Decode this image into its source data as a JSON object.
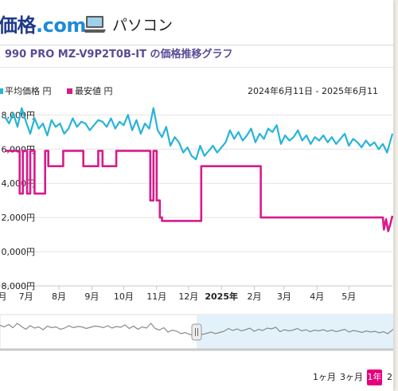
{
  "header": {
    "logo_brand": "価格",
    "logo_com": ".com",
    "category_icon": "laptop-icon",
    "category": "パソコン"
  },
  "chart_title": "990 PRO MZ-V9P2T0B-IT の価格推移グラフ",
  "legend": {
    "avg": {
      "label": "平均価格 円",
      "color": "#27b4d8"
    },
    "min": {
      "label": "最安値 円",
      "color": "#d81b8c"
    }
  },
  "period": "2024年6月11日 - 2025年6月11",
  "range_buttons": {
    "m1": "1ヶ月",
    "m3": "3ヶ月",
    "y1": "1年",
    "y2": "2"
  },
  "colors": {
    "avg_line": "#27b4d8",
    "min_line": "#d81b8c",
    "active_button": "#e6007e",
    "navigator_bg": "#e3f2fa"
  },
  "chart_data": {
    "type": "line",
    "y_tick_labels": [
      "8,000円",
      "6,000円",
      "4,000円",
      "2,000円",
      "0,000円",
      "8,000円"
    ],
    "y_tick_values": [
      8000,
      6000,
      4000,
      2000,
      0,
      -2000
    ],
    "ylim": [
      -2000,
      8900
    ],
    "x_range": [
      "2024-06-11",
      "2025-06-11"
    ],
    "x_tick_labels": [
      "7月",
      "8月",
      "9月",
      "10月",
      "11月",
      "12月",
      "2025年",
      "2月",
      "3月",
      "4月",
      "5月"
    ],
    "x_tick_dates": [
      "2024-07-01",
      "2024-08-01",
      "2024-09-01",
      "2024-10-01",
      "2024-11-01",
      "2024-12-01",
      "2025-01-01",
      "2025-02-01",
      "2025-03-01",
      "2025-04-01",
      "2025-05-01"
    ],
    "x_tick_bold": "2025年",
    "left_clipped_label": "月",
    "grid": "horizontal",
    "series": [
      {
        "name": "平均価格 円",
        "x": [
          "2024-06-11",
          "2024-06-15",
          "2024-06-19",
          "2024-06-23",
          "2024-06-27",
          "2024-07-01",
          "2024-07-05",
          "2024-07-09",
          "2024-07-13",
          "2024-07-17",
          "2024-07-21",
          "2024-07-25",
          "2024-07-29",
          "2024-08-02",
          "2024-08-06",
          "2024-08-10",
          "2024-08-14",
          "2024-08-18",
          "2024-08-22",
          "2024-08-26",
          "2024-08-30",
          "2024-09-03",
          "2024-09-07",
          "2024-09-11",
          "2024-09-15",
          "2024-09-19",
          "2024-09-23",
          "2024-09-27",
          "2024-10-01",
          "2024-10-05",
          "2024-10-09",
          "2024-10-13",
          "2024-10-17",
          "2024-10-21",
          "2024-10-25",
          "2024-10-29",
          "2024-11-02",
          "2024-11-06",
          "2024-11-10",
          "2024-11-14",
          "2024-11-18",
          "2024-11-22",
          "2024-11-26",
          "2024-11-30",
          "2024-12-04",
          "2024-12-08",
          "2024-12-12",
          "2024-12-16",
          "2024-12-20",
          "2024-12-24",
          "2024-12-28",
          "2025-01-01",
          "2025-01-05",
          "2025-01-09",
          "2025-01-13",
          "2025-01-17",
          "2025-01-21",
          "2025-01-25",
          "2025-01-29",
          "2025-02-02",
          "2025-02-06",
          "2025-02-10",
          "2025-02-14",
          "2025-02-18",
          "2025-02-22",
          "2025-02-26",
          "2025-03-02",
          "2025-03-06",
          "2025-03-10",
          "2025-03-14",
          "2025-03-18",
          "2025-03-22",
          "2025-03-26",
          "2025-03-30",
          "2025-04-03",
          "2025-04-07",
          "2025-04-11",
          "2025-04-15",
          "2025-04-19",
          "2025-04-23",
          "2025-04-27",
          "2025-05-01",
          "2025-05-05",
          "2025-05-09",
          "2025-05-13",
          "2025-05-17",
          "2025-05-21",
          "2025-05-25",
          "2025-05-29",
          "2025-06-02",
          "2025-06-06",
          "2025-06-11"
        ],
        "values": [
          7900,
          7500,
          8100,
          7300,
          8400,
          7600,
          6900,
          7800,
          7200,
          7500,
          6800,
          7700,
          7300,
          7500,
          6900,
          7200,
          7800,
          7300,
          7600,
          7500,
          7100,
          7400,
          7700,
          7600,
          7300,
          7800,
          7200,
          7600,
          7400,
          8000,
          7100,
          7700,
          6900,
          7500,
          7200,
          8400,
          7100,
          6700,
          7300,
          6200,
          6700,
          6400,
          5800,
          6100,
          5600,
          5400,
          6200,
          5600,
          5900,
          6200,
          5800,
          6100,
          6400,
          7100,
          6600,
          7000,
          6500,
          6800,
          7200,
          6400,
          6900,
          6600,
          7200,
          7000,
          7400,
          6300,
          6800,
          6500,
          6700,
          7100,
          6500,
          6800,
          6300,
          6700,
          6500,
          6800,
          6400,
          6700,
          6300,
          6600,
          6900,
          6200,
          6600,
          6400,
          6100,
          6500,
          6200,
          6400,
          6000,
          6300,
          5800,
          6900
        ]
      },
      {
        "name": "最安値 円",
        "x": [
          "2024-06-11",
          "2024-06-25",
          "2024-06-25",
          "2024-06-28",
          "2024-06-28",
          "2024-07-02",
          "2024-07-02",
          "2024-07-05",
          "2024-07-05",
          "2024-07-09",
          "2024-07-09",
          "2024-07-19",
          "2024-07-19",
          "2024-07-22",
          "2024-07-22",
          "2024-08-05",
          "2024-08-05",
          "2024-08-24",
          "2024-08-24",
          "2024-09-07",
          "2024-09-07",
          "2024-09-11",
          "2024-09-11",
          "2024-09-24",
          "2024-09-24",
          "2024-10-26",
          "2024-10-26",
          "2024-10-29",
          "2024-10-29",
          "2024-11-01",
          "2024-11-01",
          "2024-11-04",
          "2024-11-04",
          "2024-11-06",
          "2024-11-06",
          "2024-12-13",
          "2024-12-13",
          "2025-02-07",
          "2025-02-07",
          "2025-06-02",
          "2025-06-03",
          "2025-06-05",
          "2025-06-07",
          "2025-06-09",
          "2025-06-11"
        ],
        "values": [
          5900,
          5900,
          3400,
          3400,
          5900,
          5900,
          3400,
          3400,
          5900,
          5900,
          3400,
          3400,
          5900,
          5900,
          5000,
          5000,
          5900,
          5900,
          5000,
          5000,
          5900,
          5900,
          5000,
          5000,
          5900,
          5900,
          3000,
          3000,
          5900,
          5900,
          3000,
          3000,
          2000,
          2000,
          1800,
          1800,
          5000,
          5000,
          2000,
          2000,
          1300,
          1900,
          1200,
          1600,
          2100
        ]
      }
    ]
  }
}
